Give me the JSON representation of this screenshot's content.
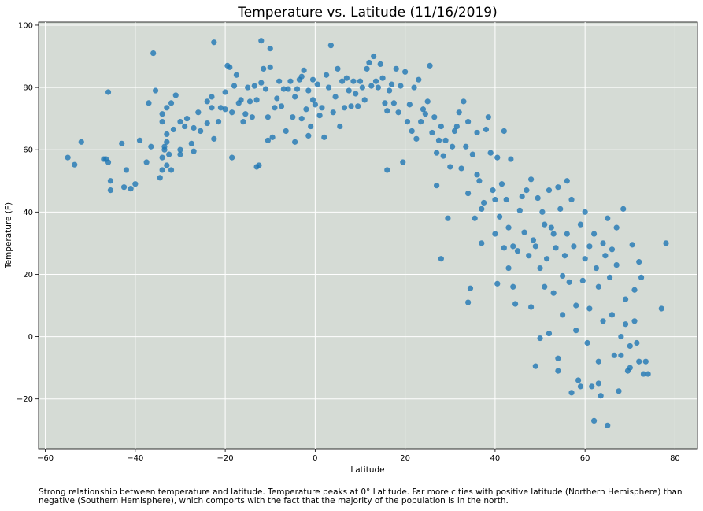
{
  "chart_data": {
    "type": "scatter",
    "title": "Temperature vs. Latitude (11/16/2019)",
    "xlabel": "Latitude",
    "ylabel": "Temperature (F)",
    "xlim": [
      -61.5,
      85
    ],
    "ylim": [
      -36,
      101
    ],
    "xticks": [
      -60,
      -40,
      -20,
      0,
      20,
      40,
      60,
      80
    ],
    "yticks": [
      -20,
      0,
      20,
      40,
      60,
      80,
      100
    ],
    "grid": true,
    "colors": {
      "background": "#d5dbd5",
      "grid": "#ffffff",
      "point": "#1f77b4"
    },
    "points": [
      [
        -55,
        57.5
      ],
      [
        -53.5,
        55.2
      ],
      [
        -52,
        62.5
      ],
      [
        -47,
        57
      ],
      [
        -46.5,
        57
      ],
      [
        -46,
        56
      ],
      [
        -46,
        78.5
      ],
      [
        -45.5,
        50
      ],
      [
        -45.5,
        47
      ],
      [
        -43,
        62
      ],
      [
        -42.5,
        48
      ],
      [
        -42,
        53.5
      ],
      [
        -41,
        47.5
      ],
      [
        -40,
        49
      ],
      [
        -39,
        63
      ],
      [
        -37.5,
        56
      ],
      [
        -37,
        75
      ],
      [
        -36.5,
        61
      ],
      [
        -36,
        91
      ],
      [
        -35.5,
        79
      ],
      [
        -34.5,
        51
      ],
      [
        -34,
        53.5
      ],
      [
        -34,
        57.5
      ],
      [
        -34,
        69
      ],
      [
        -34,
        71.5
      ],
      [
        -33.5,
        60
      ],
      [
        -33.5,
        61
      ],
      [
        -33,
        55
      ],
      [
        -33,
        62.5
      ],
      [
        -33,
        65
      ],
      [
        -33,
        73.5
      ],
      [
        -32.5,
        58.5
      ],
      [
        -32,
        53.5
      ],
      [
        -32,
        75
      ],
      [
        -31.5,
        66.5
      ],
      [
        -31,
        77.5
      ],
      [
        -30,
        58.5
      ],
      [
        -30,
        60
      ],
      [
        -30,
        69
      ],
      [
        -29,
        67.5
      ],
      [
        -28.5,
        70
      ],
      [
        -27.5,
        62
      ],
      [
        -27,
        59.5
      ],
      [
        -27,
        67
      ],
      [
        -26,
        72
      ],
      [
        -25.5,
        66
      ],
      [
        -24,
        75.5
      ],
      [
        -24,
        68.5
      ],
      [
        -23,
        73.5
      ],
      [
        -23,
        77
      ],
      [
        -22.5,
        63.5
      ],
      [
        -22.5,
        94.5
      ],
      [
        -21.5,
        69
      ],
      [
        -21,
        73.5
      ],
      [
        -20,
        73
      ],
      [
        -20,
        78.5
      ],
      [
        -19.5,
        87
      ],
      [
        -19,
        86.5
      ],
      [
        -18.5,
        72
      ],
      [
        -18.5,
        57.5
      ],
      [
        -18,
        80.5
      ],
      [
        -17.5,
        84
      ],
      [
        -17,
        75
      ],
      [
        -16.5,
        76
      ],
      [
        -16,
        69
      ],
      [
        -15.5,
        71.5
      ],
      [
        -15,
        80
      ],
      [
        -14.5,
        75.5
      ],
      [
        -14,
        70.5
      ],
      [
        -13.5,
        80.5
      ],
      [
        -13,
        76
      ],
      [
        -13,
        54.5
      ],
      [
        -12.5,
        55
      ],
      [
        -12,
        81.5
      ],
      [
        -12,
        95
      ],
      [
        -11.5,
        86
      ],
      [
        -11,
        79.5
      ],
      [
        -10.5,
        70.5
      ],
      [
        -10.5,
        63
      ],
      [
        -10,
        86.5
      ],
      [
        -10,
        92.5
      ],
      [
        -9.5,
        64
      ],
      [
        -9,
        73.5
      ],
      [
        -8.5,
        76.5
      ],
      [
        -8,
        82
      ],
      [
        -7.5,
        74
      ],
      [
        -7,
        79.5
      ],
      [
        -6.5,
        66
      ],
      [
        -6,
        79.5
      ],
      [
        -5.5,
        82
      ],
      [
        -5,
        70.5
      ],
      [
        -4.5,
        77
      ],
      [
        -4.5,
        62.5
      ],
      [
        -4,
        79.5
      ],
      [
        -3.5,
        82.5
      ],
      [
        -3,
        70
      ],
      [
        -3,
        83.5
      ],
      [
        -2.5,
        85.5
      ],
      [
        -2,
        73
      ],
      [
        -1.5,
        79
      ],
      [
        -1.5,
        64.5
      ],
      [
        -1,
        67.5
      ],
      [
        -0.5,
        76
      ],
      [
        -0.5,
        82.5
      ],
      [
        0,
        74.5
      ],
      [
        0.5,
        81
      ],
      [
        1,
        71
      ],
      [
        1.5,
        73.5
      ],
      [
        2,
        64
      ],
      [
        2.5,
        84
      ],
      [
        3,
        80
      ],
      [
        3.5,
        93.5
      ],
      [
        4,
        72
      ],
      [
        4.5,
        77
      ],
      [
        5,
        86
      ],
      [
        5.5,
        67.5
      ],
      [
        6,
        82
      ],
      [
        6.5,
        73.5
      ],
      [
        7,
        83
      ],
      [
        7.5,
        79
      ],
      [
        8,
        74
      ],
      [
        8.5,
        82
      ],
      [
        9,
        78
      ],
      [
        9.5,
        74
      ],
      [
        10,
        82
      ],
      [
        10.5,
        80
      ],
      [
        11,
        76
      ],
      [
        11.5,
        86
      ],
      [
        12,
        88
      ],
      [
        12.5,
        80.5
      ],
      [
        13,
        90
      ],
      [
        13.5,
        82
      ],
      [
        14,
        80
      ],
      [
        14.5,
        87.5
      ],
      [
        15,
        83
      ],
      [
        15.5,
        75
      ],
      [
        16,
        72.5
      ],
      [
        16,
        53.5
      ],
      [
        16.5,
        79
      ],
      [
        17,
        81
      ],
      [
        17.5,
        75
      ],
      [
        18,
        86
      ],
      [
        18.5,
        72
      ],
      [
        19,
        80.5
      ],
      [
        19.5,
        56
      ],
      [
        20,
        85
      ],
      [
        20.5,
        69
      ],
      [
        21,
        74.5
      ],
      [
        21.5,
        66
      ],
      [
        22,
        80
      ],
      [
        22.5,
        63.5
      ],
      [
        23,
        82.5
      ],
      [
        23.5,
        69
      ],
      [
        24,
        73
      ],
      [
        24.5,
        71.5
      ],
      [
        25,
        75.5
      ],
      [
        25.5,
        87
      ],
      [
        26,
        65.5
      ],
      [
        26.5,
        70.5
      ],
      [
        27,
        59
      ],
      [
        27,
        48.5
      ],
      [
        27.5,
        63
      ],
      [
        28,
        67.5
      ],
      [
        28,
        25
      ],
      [
        28.5,
        58
      ],
      [
        29,
        63
      ],
      [
        29.5,
        38
      ],
      [
        30,
        54.5
      ],
      [
        30.5,
        61
      ],
      [
        31,
        66
      ],
      [
        31.5,
        67.5
      ],
      [
        32,
        72
      ],
      [
        32.5,
        54
      ],
      [
        33,
        75.5
      ],
      [
        33.5,
        61
      ],
      [
        34,
        69
      ],
      [
        34,
        46
      ],
      [
        34,
        11
      ],
      [
        34.5,
        15.5
      ],
      [
        35,
        58.5
      ],
      [
        35.5,
        38
      ],
      [
        36,
        65.5
      ],
      [
        36,
        52
      ],
      [
        36.5,
        50
      ],
      [
        37,
        30
      ],
      [
        37,
        41
      ],
      [
        37.5,
        43
      ],
      [
        38,
        66.5
      ],
      [
        38.5,
        70.5
      ],
      [
        39,
        59
      ],
      [
        39.5,
        47
      ],
      [
        40,
        44
      ],
      [
        40,
        33
      ],
      [
        40.5,
        57.5
      ],
      [
        40.5,
        17
      ],
      [
        41,
        38.5
      ],
      [
        41.5,
        49
      ],
      [
        42,
        28.5
      ],
      [
        42,
        66
      ],
      [
        42.5,
        44
      ],
      [
        43,
        22
      ],
      [
        43,
        35
      ],
      [
        43.5,
        57
      ],
      [
        44,
        29
      ],
      [
        44,
        16
      ],
      [
        44.5,
        10.5
      ],
      [
        45,
        27.5
      ],
      [
        45.5,
        40.5
      ],
      [
        46,
        45
      ],
      [
        46.5,
        33.5
      ],
      [
        47,
        47
      ],
      [
        47.5,
        26
      ],
      [
        48,
        50.5
      ],
      [
        48,
        9.5
      ],
      [
        48.5,
        31
      ],
      [
        49,
        -9.5
      ],
      [
        49,
        29
      ],
      [
        49.5,
        44.5
      ],
      [
        50,
        22
      ],
      [
        50,
        -0.5
      ],
      [
        50.5,
        40
      ],
      [
        51,
        36
      ],
      [
        51,
        16
      ],
      [
        51.5,
        25
      ],
      [
        52,
        1
      ],
      [
        52,
        47
      ],
      [
        52.5,
        35
      ],
      [
        53,
        14
      ],
      [
        53,
        33
      ],
      [
        53.5,
        28.5
      ],
      [
        54,
        48
      ],
      [
        54,
        -11
      ],
      [
        54,
        -7
      ],
      [
        54.5,
        41
      ],
      [
        55,
        19.5
      ],
      [
        55,
        7
      ],
      [
        55.5,
        26
      ],
      [
        56,
        50
      ],
      [
        56,
        33
      ],
      [
        56.5,
        17.5
      ],
      [
        57,
        -18
      ],
      [
        57,
        44
      ],
      [
        57.5,
        29
      ],
      [
        58,
        2
      ],
      [
        58,
        10
      ],
      [
        58.5,
        -14
      ],
      [
        59,
        36
      ],
      [
        59,
        -16
      ],
      [
        59.5,
        18
      ],
      [
        60,
        40
      ],
      [
        60,
        25
      ],
      [
        60.5,
        -2
      ],
      [
        61,
        29
      ],
      [
        61,
        9
      ],
      [
        61.5,
        -16
      ],
      [
        62,
        -27
      ],
      [
        62,
        33
      ],
      [
        62.5,
        22
      ],
      [
        63,
        16
      ],
      [
        63,
        -8
      ],
      [
        63,
        -15
      ],
      [
        63.5,
        -19
      ],
      [
        64,
        30
      ],
      [
        64,
        5
      ],
      [
        64.5,
        26
      ],
      [
        65,
        38
      ],
      [
        65,
        -28.5
      ],
      [
        65.5,
        19
      ],
      [
        66,
        28
      ],
      [
        66,
        7
      ],
      [
        66.5,
        -6
      ],
      [
        67,
        35
      ],
      [
        67,
        23
      ],
      [
        67.5,
        -17.5
      ],
      [
        68,
        0
      ],
      [
        68,
        -6
      ],
      [
        68.5,
        41
      ],
      [
        69,
        12
      ],
      [
        69,
        4
      ],
      [
        69.5,
        -11
      ],
      [
        70,
        -3
      ],
      [
        70,
        -10
      ],
      [
        70.5,
        29.5
      ],
      [
        71,
        15
      ],
      [
        71,
        5
      ],
      [
        71.5,
        -2
      ],
      [
        72,
        24
      ],
      [
        72,
        -8
      ],
      [
        72.5,
        19
      ],
      [
        73,
        -12
      ],
      [
        73.5,
        -8
      ],
      [
        74,
        -12
      ],
      [
        77,
        9
      ],
      [
        78,
        30
      ]
    ]
  },
  "caption": "Strong relationship between temperature and latitude. Temperature peaks at 0° Latitude. Far more cities with positive latitude (Northern Hemisphere) than negative (Southern Hemisphere), which comports with the fact that the majority of the population is in the north."
}
